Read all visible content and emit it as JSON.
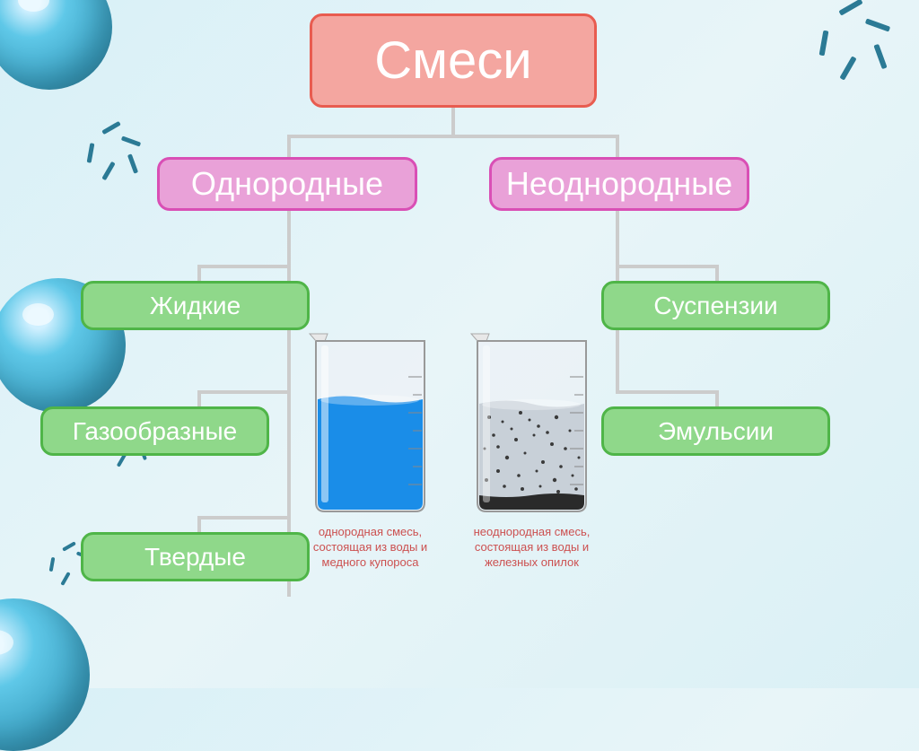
{
  "title": "Смеси",
  "categories": {
    "homogeneous": {
      "label": "Однородные",
      "bg": "#e9a1d8",
      "border": "#d94fb5",
      "children": [
        {
          "label": "Жидкие",
          "bg": "#8fd88a",
          "border": "#4fb548"
        },
        {
          "label": "Газообразные",
          "bg": "#8fd88a",
          "border": "#4fb548"
        },
        {
          "label": "Твердые",
          "bg": "#8fd88a",
          "border": "#4fb548"
        }
      ]
    },
    "heterogeneous": {
      "label": "Неоднородные",
      "bg": "#e9a1d8",
      "border": "#d94fb5",
      "children": [
        {
          "label": "Суспензии",
          "bg": "#8fd88a",
          "border": "#4fb548"
        },
        {
          "label": "Эмульсии",
          "bg": "#8fd88a",
          "border": "#4fb548"
        }
      ]
    }
  },
  "root": {
    "bg": "#f4a6a0",
    "border": "#e85c50"
  },
  "beakers": {
    "left": {
      "liquid_color": "#1a8de8",
      "fill_level": 0.65,
      "caption": "однородная смесь, состоящая из воды и медного купороса"
    },
    "right": {
      "liquid_color": "#b0b8c0",
      "fill_level": 0.62,
      "particle_color": "#3a3a3a",
      "caption": "неоднородная смесь, состоящая из воды и железных опилок"
    }
  },
  "decor": {
    "balloon_color": "#5fc8e8",
    "sparkle_color": "#2b7a95"
  },
  "background": "#e0f2f7"
}
